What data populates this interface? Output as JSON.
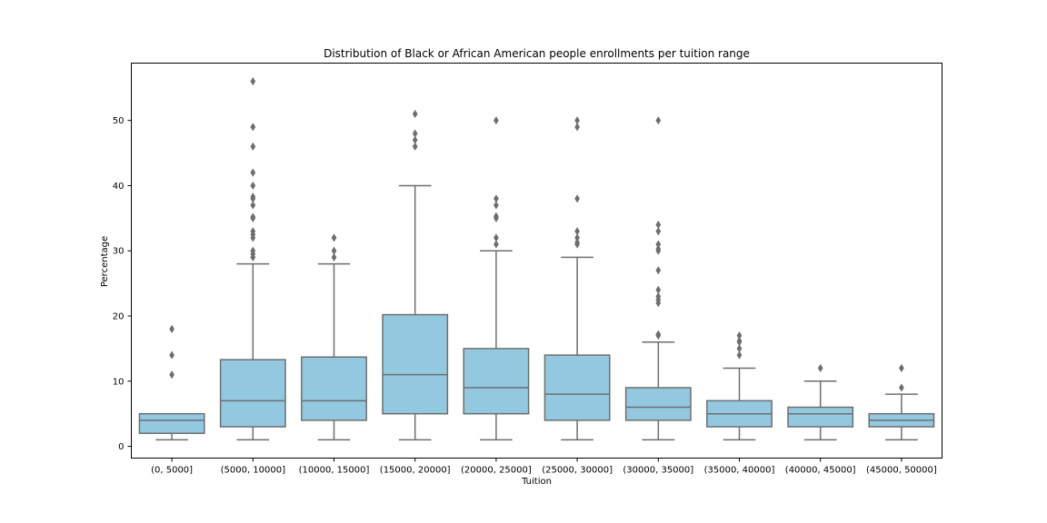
{
  "chart_data": {
    "type": "box",
    "title": "Distribution of Black or African American people enrollments per tuition range",
    "xlabel": "Tuition",
    "ylabel": "Percentage",
    "ylim": [
      -1.8,
      58.8
    ],
    "yticks": [
      0,
      10,
      20,
      30,
      40,
      50
    ],
    "grid": false,
    "colors": {
      "box_fill": "#92c9e0",
      "line": "#6e6e6e",
      "frame": "#000000"
    },
    "categories": [
      "(0, 5000]",
      "(5000, 10000]",
      "(10000, 15000]",
      "(15000, 20000]",
      "(20000, 25000]",
      "(25000, 30000]",
      "(30000, 35000]",
      "(35000, 40000]",
      "(40000, 45000]",
      "(45000, 50000]"
    ],
    "boxes": [
      {
        "min": 1,
        "q1": 2,
        "median": 4,
        "q3": 5,
        "max": 5,
        "outliers": [
          11,
          14,
          18
        ]
      },
      {
        "min": 1,
        "q1": 3,
        "median": 7,
        "q3": 13.3,
        "max": 28,
        "outliers": [
          29,
          29.5,
          30,
          32,
          32.5,
          33,
          35,
          35.2,
          37,
          38,
          38.3,
          40,
          42,
          46,
          49,
          56
        ]
      },
      {
        "min": 1,
        "q1": 4,
        "median": 7,
        "q3": 13.7,
        "max": 28,
        "outliers": [
          29,
          30,
          32
        ]
      },
      {
        "min": 1,
        "q1": 5,
        "median": 11,
        "q3": 20.2,
        "max": 40,
        "outliers": [
          46,
          47,
          48,
          51
        ]
      },
      {
        "min": 1,
        "q1": 5,
        "median": 9,
        "q3": 15,
        "max": 30,
        "outliers": [
          31,
          32,
          35,
          35.3,
          37,
          38,
          50
        ]
      },
      {
        "min": 1,
        "q1": 4,
        "median": 8,
        "q3": 14,
        "max": 29,
        "outliers": [
          31,
          31.3,
          32,
          33,
          38,
          49,
          50
        ]
      },
      {
        "min": 1,
        "q1": 4,
        "median": 6,
        "q3": 9,
        "max": 16,
        "outliers": [
          17,
          17.2,
          22,
          22.5,
          23,
          24,
          27,
          30,
          30.3,
          31,
          33,
          34,
          50
        ]
      },
      {
        "min": 1,
        "q1": 3,
        "median": 5,
        "q3": 7,
        "max": 12,
        "outliers": [
          14,
          15,
          16,
          16.2,
          17
        ]
      },
      {
        "min": 1,
        "q1": 3,
        "median": 5,
        "q3": 6,
        "max": 10,
        "outliers": [
          12
        ]
      },
      {
        "min": 1,
        "q1": 3,
        "median": 4,
        "q3": 5,
        "max": 8,
        "outliers": [
          9,
          12
        ]
      }
    ]
  }
}
